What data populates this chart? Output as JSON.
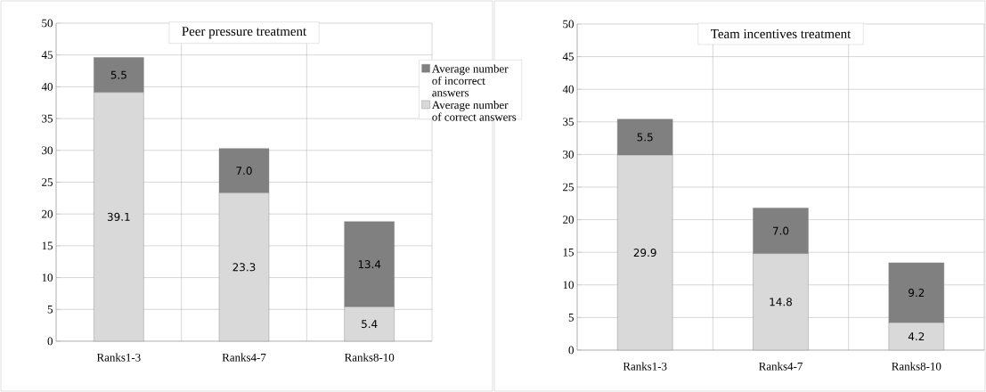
{
  "chart_data": [
    {
      "type": "bar",
      "title": "Peer pressure treatment",
      "categories": [
        "Ranks1-3",
        "Ranks4-7",
        "Ranks8-10"
      ],
      "stacked": true,
      "grid": true,
      "legend": "right",
      "series": [
        {
          "name": "Average number of correct answers",
          "color": "#d9d9d9",
          "values": [
            39.1,
            23.3,
            5.4
          ],
          "value_labels": [
            "39.1",
            "23.3",
            "5.4"
          ]
        },
        {
          "name": "Average number of incorrect answers",
          "color": "#808080",
          "values": [
            5.5,
            7.0,
            13.4
          ],
          "value_labels": [
            "5.5",
            "7.0",
            "13.4"
          ]
        }
      ],
      "ylim": [
        0,
        50
      ],
      "yticks": [
        0,
        5,
        10,
        15,
        20,
        25,
        30,
        35,
        40,
        45,
        50
      ]
    },
    {
      "type": "bar",
      "title": "Team incentives treatment",
      "categories": [
        "Ranks1-3",
        "Ranks4-7",
        "Ranks8-10"
      ],
      "stacked": true,
      "grid": true,
      "legend": false,
      "series": [
        {
          "color": "#d9d9d9",
          "values": [
            29.9,
            14.8,
            4.2
          ],
          "value_labels": [
            "29.9",
            "14.8",
            "4.2"
          ]
        },
        {
          "color": "#808080",
          "values": [
            5.5,
            7.0,
            9.2
          ],
          "value_labels": [
            "5.5",
            "7.0",
            "9.2"
          ]
        }
      ],
      "ylim": [
        0,
        50
      ],
      "yticks": [
        0,
        5,
        10,
        15,
        20,
        25,
        30,
        35,
        40,
        45,
        50
      ]
    }
  ]
}
